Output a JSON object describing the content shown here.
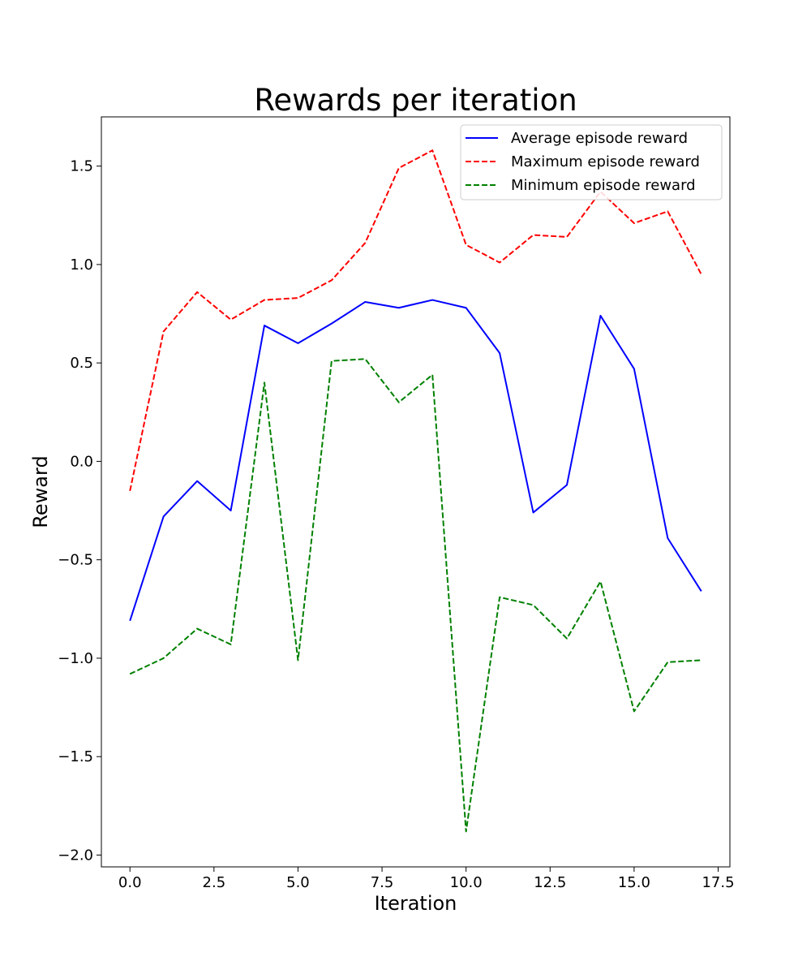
{
  "chart_data": {
    "type": "line",
    "title": "Rewards per iteration",
    "xlabel": "Iteration",
    "ylabel": "Reward",
    "xlim": [
      -0.85,
      17.85
    ],
    "ylim": [
      -2.06,
      1.75
    ],
    "xticks": [
      0.0,
      2.5,
      5.0,
      7.5,
      10.0,
      12.5,
      15.0,
      17.5
    ],
    "xtick_labels": [
      "0.0",
      "2.5",
      "5.0",
      "7.5",
      "10.0",
      "12.5",
      "15.0",
      "17.5"
    ],
    "yticks": [
      -2.0,
      -1.5,
      -1.0,
      -0.5,
      0.0,
      0.5,
      1.0,
      1.5
    ],
    "ytick_labels": [
      "−2.0",
      "−1.5",
      "−1.0",
      "−0.5",
      "0.0",
      "0.5",
      "1.0",
      "1.5"
    ],
    "grid": false,
    "legend_position": "top-right",
    "x": [
      0,
      1,
      2,
      3,
      4,
      5,
      6,
      7,
      8,
      9,
      10,
      11,
      12,
      13,
      14,
      15,
      16,
      17
    ],
    "series": [
      {
        "name": "Average episode reward",
        "color": "#0000ff",
        "style": "solid",
        "values": [
          -0.81,
          -0.28,
          -0.1,
          -0.25,
          0.69,
          0.6,
          0.7,
          0.81,
          0.78,
          0.82,
          0.78,
          0.55,
          -0.26,
          -0.12,
          0.74,
          0.47,
          -0.39,
          -0.66
        ]
      },
      {
        "name": "Maximum episode reward",
        "color": "#ff0000",
        "style": "dashed",
        "values": [
          -0.15,
          0.66,
          0.86,
          0.72,
          0.82,
          0.83,
          0.92,
          1.11,
          1.49,
          1.58,
          1.1,
          1.01,
          1.15,
          1.14,
          1.37,
          1.21,
          1.27,
          0.95
        ]
      },
      {
        "name": "Minimum episode reward",
        "color": "#008000",
        "style": "dashed",
        "values": [
          -1.08,
          -1.0,
          -0.85,
          -0.93,
          0.4,
          -1.01,
          0.51,
          0.52,
          0.3,
          0.44,
          -1.88,
          -0.69,
          -0.73,
          -0.9,
          -0.61,
          -1.27,
          -1.02,
          -1.01
        ]
      }
    ]
  }
}
